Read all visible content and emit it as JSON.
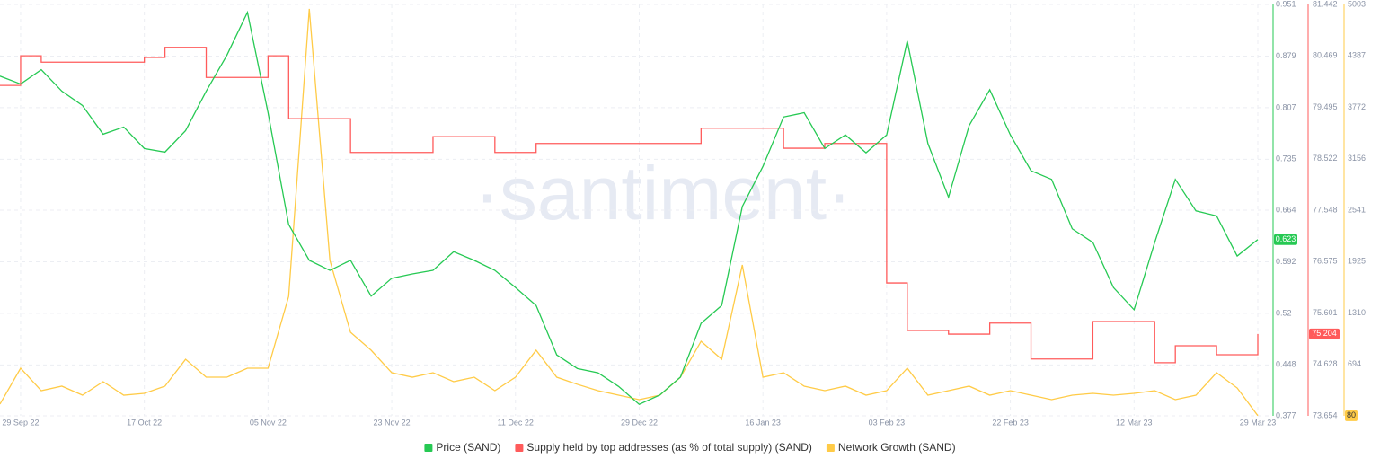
{
  "chart_data": {
    "type": "line",
    "watermark": "·santiment·",
    "categories": [
      null,
      "29 Sep 22",
      null,
      null,
      null,
      null,
      null,
      "17 Oct 22",
      null,
      null,
      null,
      null,
      null,
      "05 Nov 22",
      null,
      null,
      null,
      null,
      null,
      "23 Nov 22",
      null,
      null,
      null,
      null,
      null,
      "11 Dec 22",
      null,
      null,
      null,
      null,
      null,
      "29 Dec 22",
      null,
      null,
      null,
      null,
      null,
      "16 Jan 23",
      null,
      null,
      null,
      null,
      null,
      "03 Feb 23",
      null,
      null,
      null,
      null,
      null,
      "22 Feb 23",
      null,
      null,
      null,
      null,
      null,
      "12 Mar 23",
      null,
      null,
      null,
      null,
      null,
      "29 Mar 23"
    ],
    "series": [
      {
        "name": "Price (SAND)",
        "color": "#26c953",
        "axis": "y",
        "values": [
          0.851,
          0.84,
          0.86,
          0.83,
          0.81,
          0.77,
          0.78,
          0.75,
          0.745,
          0.775,
          0.83,
          0.88,
          0.94,
          0.8,
          0.644,
          0.594,
          0.58,
          0.594,
          0.544,
          0.569,
          0.575,
          0.58,
          0.606,
          0.594,
          0.58,
          0.556,
          0.531,
          0.462,
          0.443,
          0.437,
          0.418,
          0.393,
          0.406,
          0.431,
          0.506,
          0.531,
          0.669,
          0.725,
          0.794,
          0.8,
          0.75,
          0.769,
          0.744,
          0.769,
          0.9,
          0.757,
          0.682,
          0.782,
          0.832,
          0.769,
          0.719,
          0.707,
          0.638,
          0.619,
          0.556,
          0.525,
          0.619,
          0.707,
          0.663,
          0.656,
          0.6,
          0.623
        ]
      },
      {
        "name": "Supply held by top addresses (as % of total supply) (SAND)",
        "color": "#ff5b5b",
        "axis": "y2",
        "values": [
          79.91,
          80.47,
          80.35,
          80.35,
          80.35,
          80.35,
          80.35,
          80.44,
          80.63,
          80.63,
          80.06,
          80.06,
          80.06,
          80.47,
          79.28,
          79.28,
          79.28,
          78.64,
          78.64,
          78.64,
          78.64,
          78.94,
          78.94,
          78.94,
          78.64,
          78.64,
          78.81,
          78.81,
          78.81,
          78.81,
          78.81,
          78.81,
          78.81,
          78.81,
          79.1,
          79.1,
          79.1,
          79.1,
          78.72,
          78.72,
          78.81,
          78.81,
          78.81,
          76.17,
          75.27,
          75.27,
          75.2,
          75.2,
          75.41,
          75.41,
          74.73,
          74.73,
          74.73,
          75.44,
          75.44,
          75.44,
          74.66,
          74.98,
          74.98,
          74.81,
          74.81,
          75.204
        ]
      },
      {
        "name": "Network Growth (SAND)",
        "color": "#ffcb47",
        "axis": "y3",
        "values": [
          218,
          648,
          379,
          433,
          325,
          487,
          325,
          347,
          433,
          755,
          540,
          540,
          648,
          648,
          1508,
          4950,
          1938,
          1078,
          863,
          594,
          540,
          594,
          487,
          540,
          379,
          540,
          863,
          540,
          455,
          379,
          325,
          272,
          325,
          540,
          970,
          755,
          1884,
          540,
          594,
          433,
          379,
          433,
          325,
          379,
          648,
          325,
          379,
          433,
          325,
          379,
          325,
          272,
          325,
          347,
          325,
          347,
          379,
          272,
          325,
          594,
          411,
          80
        ]
      }
    ],
    "ylim": [
      0.377,
      0.951
    ],
    "yticks": [
      0.377,
      0.448,
      0.52,
      0.592,
      0.664,
      0.735,
      0.807,
      0.879,
      0.951
    ],
    "y2lim": [
      73.654,
      81.442
    ],
    "y2ticks": [
      73.654,
      74.628,
      75.601,
      76.575,
      77.548,
      78.522,
      79.495,
      80.469,
      81.442
    ],
    "y3lim": [
      78,
      5003
    ],
    "y3ticks": [
      694,
      1310,
      1925,
      2541,
      3156,
      3772,
      4387,
      5003
    ],
    "grid": true
  }
}
